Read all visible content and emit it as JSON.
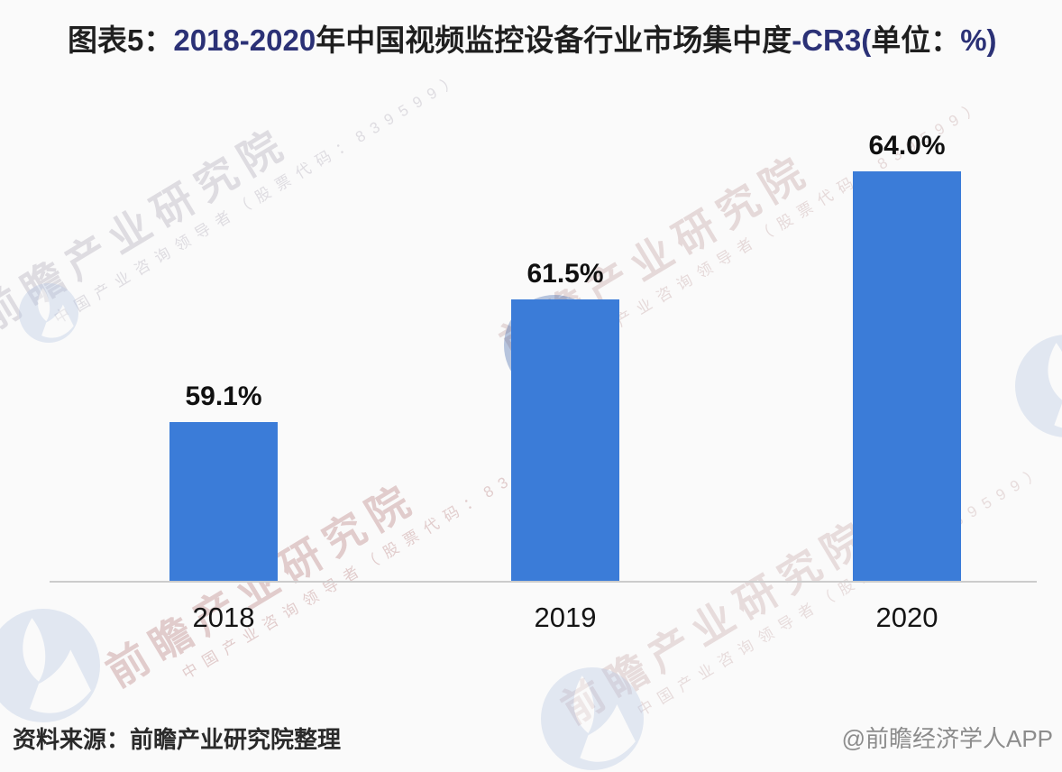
{
  "title": {
    "full": "图表5：2018-2020年中国视频监控设备行业市场集中度-CR3(单位：%)",
    "segments": [
      {
        "text": "图表5：",
        "tone": "dark"
      },
      {
        "text": "2018-2020",
        "tone": "blue"
      },
      {
        "text": "年中国视频监控设备行业市场集中度",
        "tone": "dark"
      },
      {
        "text": "-CR3(",
        "tone": "blue"
      },
      {
        "text": "单位：",
        "tone": "dark"
      },
      {
        "text": "%)",
        "tone": "blue"
      }
    ]
  },
  "chart_data": {
    "type": "bar",
    "title": "图表5：2018-2020年中国视频监控设备行业市场集中度-CR3(单位：%)",
    "categories": [
      "2018",
      "2019",
      "2020"
    ],
    "values": [
      59.1,
      61.5,
      64.0
    ],
    "value_labels": [
      "59.1%",
      "61.5%",
      "64.0%"
    ],
    "unit": "%",
    "y_axis_visible": false,
    "gridlines": false,
    "legend": "none",
    "bar_color": "#3b7cd8"
  },
  "watermark": {
    "main": "前瞻产业研究院",
    "sub": "中国产业咨询领导者（股票代码：839599）",
    "logo_name": "qianzhan-logo"
  },
  "footer": {
    "source": "资料来源：前瞻产业研究院整理",
    "credit": "@前瞻经济学人APP"
  },
  "colors": {
    "bar": "#3b7cd8",
    "title_dark": "#1f1f1f",
    "title_blue": "#2b3176",
    "axis_line": "#cccccc",
    "credit_gray": "#8c8c8c",
    "background": "#fafafa"
  }
}
